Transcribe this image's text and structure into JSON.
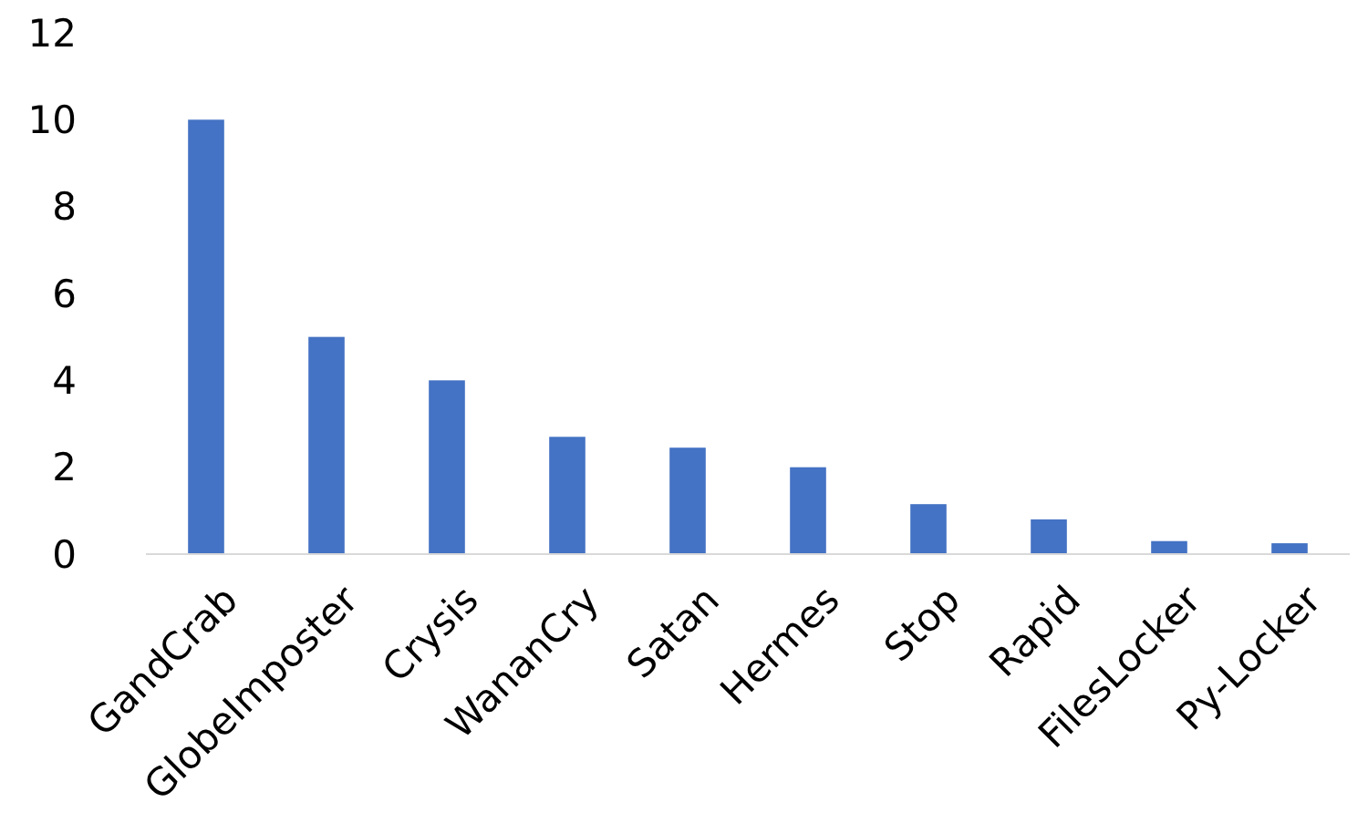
{
  "chart_data": {
    "type": "bar",
    "categories": [
      "GandCrab",
      "GlobeImposter",
      "Crysis",
      "WananCry",
      "Satan",
      "Hermes",
      "Stop",
      "Rapid",
      "FilesLocker",
      "Py-Locker"
    ],
    "values": [
      10,
      5,
      4,
      2.7,
      2.45,
      2,
      1.15,
      0.8,
      0.3,
      0.25
    ],
    "color": "#4472c4",
    "ylim": [
      0,
      12
    ],
    "yticks": [
      0,
      2,
      4,
      6,
      8,
      10,
      12
    ],
    "grid": false
  }
}
